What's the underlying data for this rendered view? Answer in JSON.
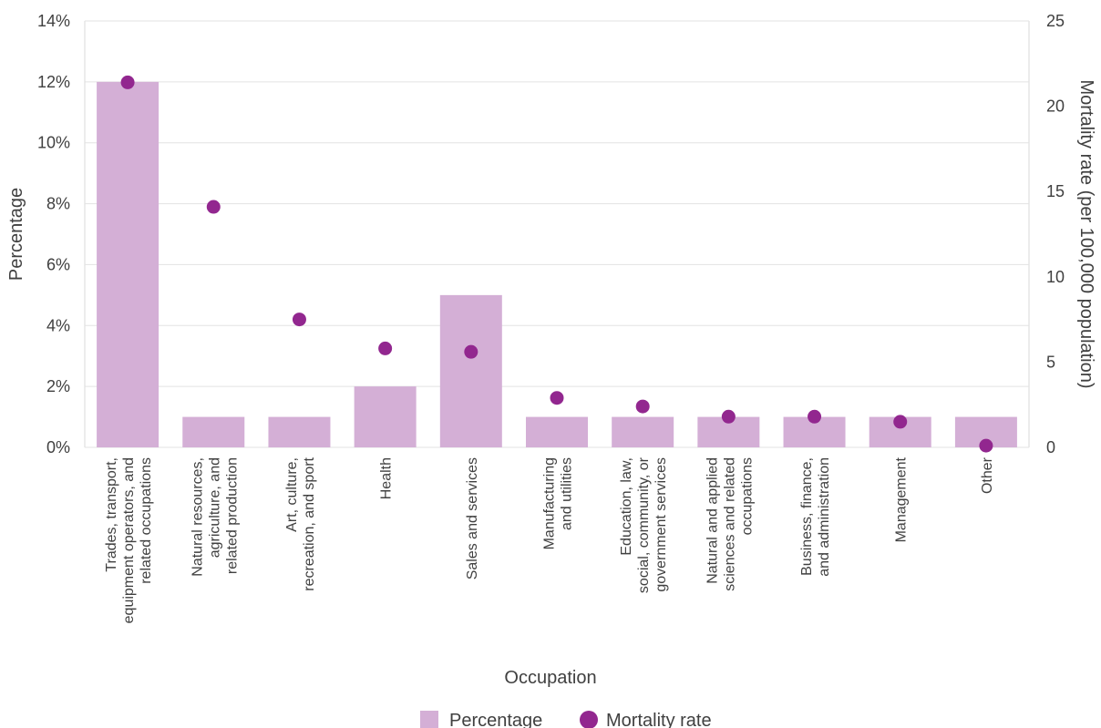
{
  "chart_data": {
    "type": "bar",
    "xlabel": "Occupation",
    "ylabel": "Percentage",
    "y2label": "Mortality rate (per 100,000 population)",
    "ylim": [
      0,
      14
    ],
    "y2lim": [
      0,
      25
    ],
    "yticks": [
      "0%",
      "2%",
      "4%",
      "6%",
      "8%",
      "10%",
      "12%",
      "14%"
    ],
    "y2ticks": [
      "0",
      "5",
      "10",
      "15",
      "20",
      "25"
    ],
    "grid": true,
    "legend_position": "bottom",
    "categories": [
      [
        "Trades, transport,",
        "equipment operators, and",
        "related occupations"
      ],
      [
        "Natural resources,",
        "agriculture, and",
        "related production"
      ],
      [
        "Art, culture,",
        "recreation, and sport"
      ],
      [
        "Health"
      ],
      [
        "Sales and services"
      ],
      [
        "Manufacturing",
        "and utilities"
      ],
      [
        "Education, law,",
        "social, community, or",
        "government services"
      ],
      [
        "Natural and applied",
        "sciences and related",
        "occupations"
      ],
      [
        "Business, finance,",
        "and administration"
      ],
      [
        "Management"
      ],
      [
        "Other"
      ]
    ],
    "series": [
      {
        "name": "Percentage",
        "type": "bar",
        "axis": "left",
        "color": "#d4afd6",
        "values": [
          12,
          1,
          1,
          2,
          5,
          1,
          1,
          1,
          1,
          1,
          1
        ]
      },
      {
        "name": "Mortality rate",
        "type": "scatter",
        "axis": "right",
        "color": "#92278f",
        "values": [
          21.4,
          14.1,
          7.5,
          5.8,
          5.6,
          2.9,
          2.4,
          1.8,
          1.8,
          1.5,
          0.1
        ]
      }
    ]
  }
}
